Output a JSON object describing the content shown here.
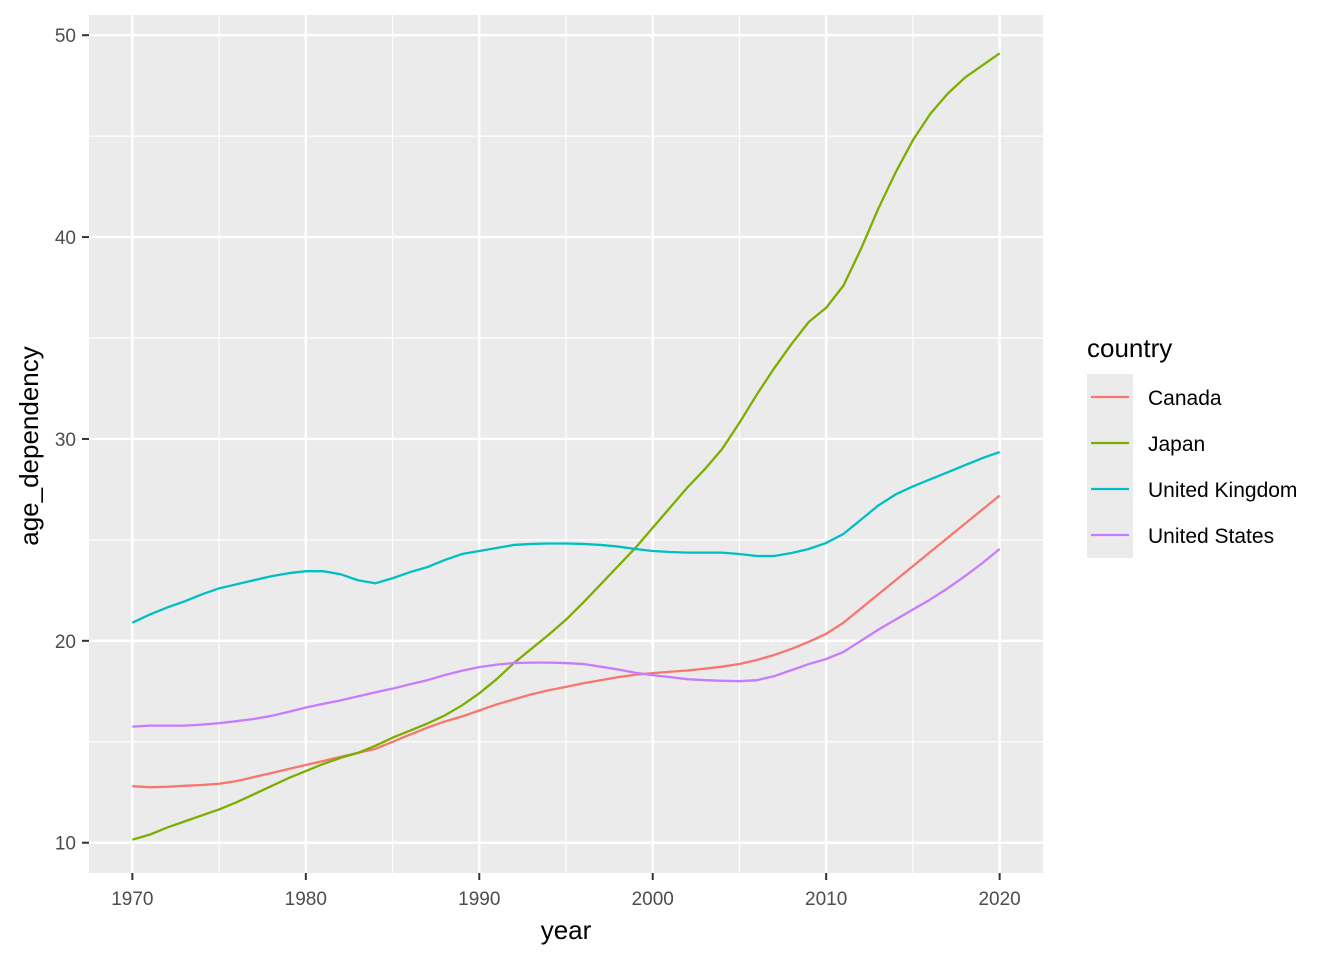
{
  "chart_data": {
    "type": "line",
    "xlabel": "year",
    "ylabel": "age_dependency",
    "xlim": [
      1967.5,
      2022.5
    ],
    "ylim": [
      8.5,
      51
    ],
    "x_ticks": [
      1970,
      1980,
      1990,
      2000,
      2010,
      2020
    ],
    "y_ticks": [
      10,
      20,
      30,
      40,
      50
    ],
    "grid": true,
    "legend_title": "country",
    "legend_position": "right",
    "x": [
      1970,
      1971,
      1972,
      1973,
      1974,
      1975,
      1976,
      1977,
      1978,
      1979,
      1980,
      1981,
      1982,
      1983,
      1984,
      1985,
      1986,
      1987,
      1988,
      1989,
      1990,
      1991,
      1992,
      1993,
      1994,
      1995,
      1996,
      1997,
      1998,
      1999,
      2000,
      2001,
      2002,
      2003,
      2004,
      2005,
      2006,
      2007,
      2008,
      2009,
      2010,
      2011,
      2012,
      2013,
      2014,
      2015,
      2016,
      2017,
      2018,
      2019,
      2020
    ],
    "series": [
      {
        "name": "Canada",
        "color": "#F8766D",
        "values": [
          12.8,
          12.75,
          12.77,
          12.82,
          12.86,
          12.92,
          13.05,
          13.25,
          13.45,
          13.65,
          13.85,
          14.05,
          14.25,
          14.45,
          14.65,
          15.0,
          15.35,
          15.7,
          16.0,
          16.25,
          16.55,
          16.85,
          17.1,
          17.35,
          17.55,
          17.72,
          17.9,
          18.05,
          18.2,
          18.32,
          18.4,
          18.47,
          18.53,
          18.62,
          18.72,
          18.85,
          19.05,
          19.3,
          19.6,
          19.95,
          20.35,
          20.9,
          21.6,
          22.3,
          23.0,
          23.7,
          24.4,
          25.1,
          25.8,
          26.5,
          27.2
        ]
      },
      {
        "name": "Japan",
        "color": "#7CAE00",
        "values": [
          10.15,
          10.4,
          10.75,
          11.05,
          11.35,
          11.65,
          12.0,
          12.4,
          12.8,
          13.2,
          13.55,
          13.9,
          14.2,
          14.45,
          14.8,
          15.2,
          15.55,
          15.9,
          16.3,
          16.8,
          17.4,
          18.1,
          18.9,
          19.6,
          20.3,
          21.05,
          21.9,
          22.8,
          23.7,
          24.6,
          25.6,
          26.6,
          27.6,
          28.5,
          29.5,
          30.8,
          32.2,
          33.5,
          34.7,
          35.8,
          36.5,
          37.6,
          39.4,
          41.4,
          43.2,
          44.8,
          46.1,
          47.1,
          47.9,
          48.5,
          49.1
        ]
      },
      {
        "name": "United Kingdom",
        "color": "#00BFC4",
        "values": [
          20.9,
          21.3,
          21.65,
          21.95,
          22.3,
          22.6,
          22.8,
          23.0,
          23.2,
          23.35,
          23.45,
          23.45,
          23.3,
          23.0,
          22.85,
          23.1,
          23.4,
          23.65,
          24.0,
          24.3,
          24.45,
          24.6,
          24.75,
          24.8,
          24.82,
          24.82,
          24.8,
          24.75,
          24.67,
          24.55,
          24.45,
          24.4,
          24.37,
          24.37,
          24.37,
          24.3,
          24.2,
          24.2,
          24.35,
          24.55,
          24.85,
          25.3,
          26.0,
          26.7,
          27.25,
          27.65,
          28.0,
          28.35,
          28.7,
          29.05,
          29.35
        ]
      },
      {
        "name": "United States",
        "color": "#C77CFF",
        "values": [
          15.75,
          15.8,
          15.8,
          15.8,
          15.85,
          15.92,
          16.02,
          16.13,
          16.28,
          16.48,
          16.7,
          16.88,
          17.05,
          17.25,
          17.45,
          17.63,
          17.85,
          18.05,
          18.3,
          18.52,
          18.7,
          18.82,
          18.9,
          18.92,
          18.92,
          18.9,
          18.85,
          18.72,
          18.58,
          18.42,
          18.3,
          18.2,
          18.1,
          18.05,
          18.02,
          18.0,
          18.05,
          18.25,
          18.55,
          18.85,
          19.1,
          19.45,
          20.0,
          20.55,
          21.05,
          21.55,
          22.05,
          22.6,
          23.2,
          23.85,
          24.55
        ]
      }
    ]
  }
}
